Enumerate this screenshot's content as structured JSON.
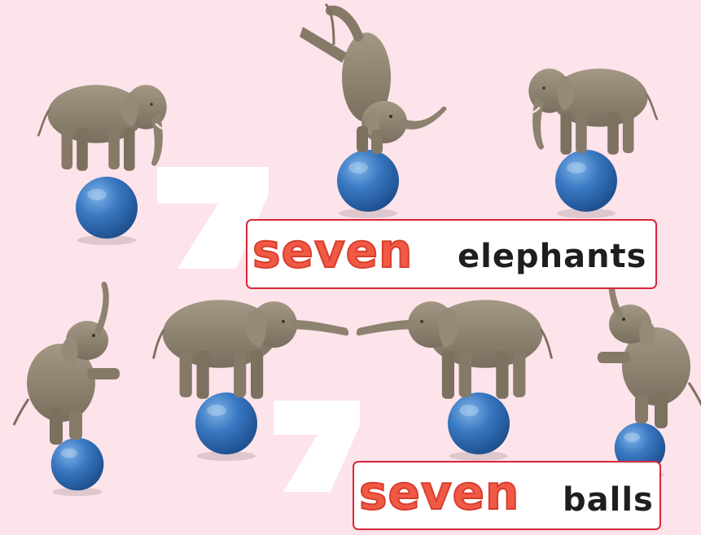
{
  "scene": {
    "background_color": "#fde3ea",
    "digit_glyph": "7",
    "digit_color": "#ffffff",
    "elephant_count": 7,
    "ball_count": 7,
    "ball_color": "#2f6fb6",
    "elephant_color": "#8d8170"
  },
  "labels": {
    "elephants": {
      "number": "seven",
      "noun": "elephants"
    },
    "balls": {
      "number": "seven",
      "noun": "balls"
    }
  },
  "colors": {
    "number_word": "#f05a45",
    "noun_word": "#1e1e1e",
    "sign_border": "#d8283a",
    "sign_fill": "#ffffff"
  }
}
